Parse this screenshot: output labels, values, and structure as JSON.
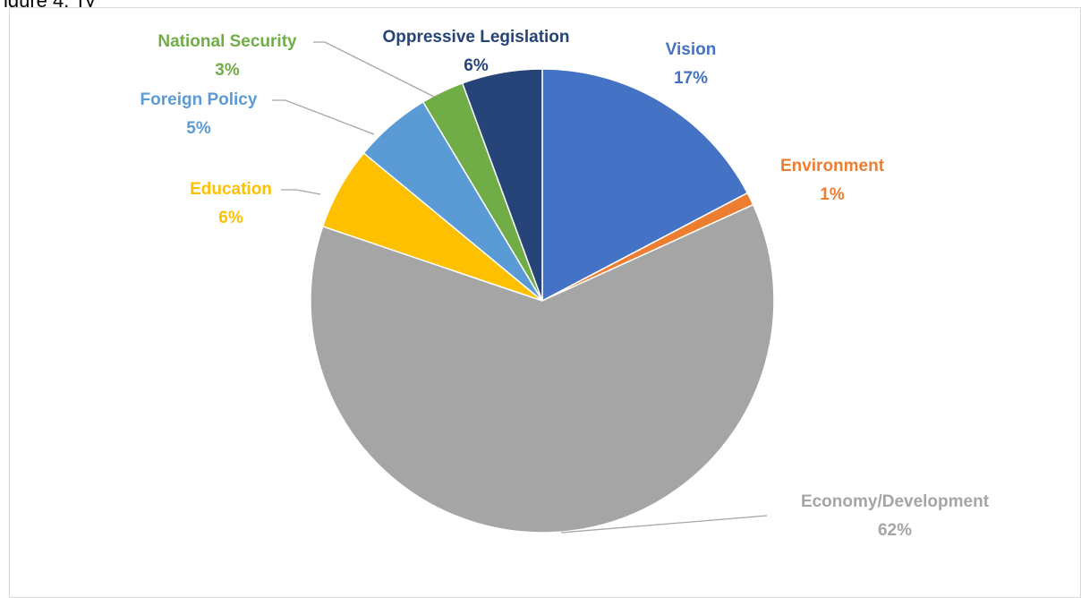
{
  "header_fragment": "igure 4. Ty",
  "chart_data": {
    "type": "pie",
    "start_angle_deg": 0,
    "direction": "clockwise",
    "slices": [
      {
        "label": "Vision",
        "percent_label": "17%",
        "value": 17.3,
        "color": "#4472C4"
      },
      {
        "label": "Environment",
        "percent_label": "1%",
        "value": 0.9,
        "color": "#ED7D31"
      },
      {
        "label": "Economy/Development",
        "percent_label": "62%",
        "value": 62.0,
        "color": "#A5A5A5"
      },
      {
        "label": "Education",
        "percent_label": "6%",
        "value": 5.8,
        "color": "#FFC000"
      },
      {
        "label": "Foreign Policy",
        "percent_label": "5%",
        "value": 5.4,
        "color": "#5B9BD5"
      },
      {
        "label": "National Security",
        "percent_label": "3%",
        "value": 3.0,
        "color": "#70AD47"
      },
      {
        "label": "Oppressive Legislation",
        "percent_label": "6%",
        "value": 5.6,
        "color": "#264478"
      }
    ],
    "legend": "none"
  }
}
